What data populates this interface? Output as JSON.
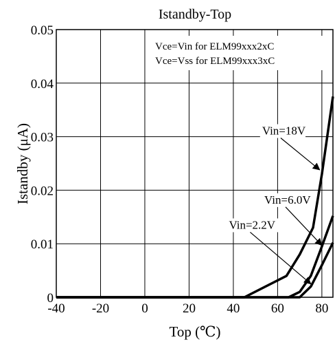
{
  "chart_data": {
    "type": "line",
    "title": "Istandby-Top",
    "xlabel": "Top (℃)",
    "ylabel": "Istandby (μA)",
    "xlim": [
      -40,
      85
    ],
    "ylim": [
      0,
      0.05
    ],
    "x_ticks": [
      -40,
      -20,
      0,
      20,
      40,
      60,
      80
    ],
    "y_ticks": [
      0,
      0.01,
      0.02,
      0.03,
      0.04,
      0.05
    ],
    "x_tick_labels": [
      "-40",
      "-20",
      "0",
      "20",
      "40",
      "60",
      "80"
    ],
    "y_tick_labels": [
      "0",
      "0.01",
      "0.02",
      "0.03",
      "0.04",
      "0.05"
    ],
    "grid": true,
    "notes": [
      "Vce=Vin for ELM99xxx2xC",
      "Vce=Vss for ELM99xxx3xC"
    ],
    "series": [
      {
        "name": "Vin=18V",
        "x": [
          -40,
          45,
          64,
          70,
          76,
          80,
          85
        ],
        "y": [
          0,
          0,
          0.004,
          0.008,
          0.013,
          0.023,
          0.0375
        ]
      },
      {
        "name": "Vin=6.0V",
        "x": [
          -40,
          65,
          70,
          75,
          80,
          85
        ],
        "y": [
          0,
          0,
          0.001,
          0.004,
          0.0095,
          0.0152
        ]
      },
      {
        "name": "Vin=2.2V",
        "x": [
          -40,
          70,
          75,
          80,
          85
        ],
        "y": [
          0,
          0,
          0.002,
          0.006,
          0.0102
        ]
      }
    ],
    "annotations": [
      {
        "series": 0,
        "text_x": 53,
        "text_y": 0.0304,
        "point_x": 79,
        "point_y": 0.0238
      },
      {
        "series": 1,
        "text_x": 54,
        "text_y": 0.0175,
        "point_x": 80,
        "point_y": 0.0097
      },
      {
        "series": 2,
        "text_x": 38,
        "text_y": 0.0128,
        "point_x": 75,
        "point_y": 0.0025
      }
    ]
  }
}
